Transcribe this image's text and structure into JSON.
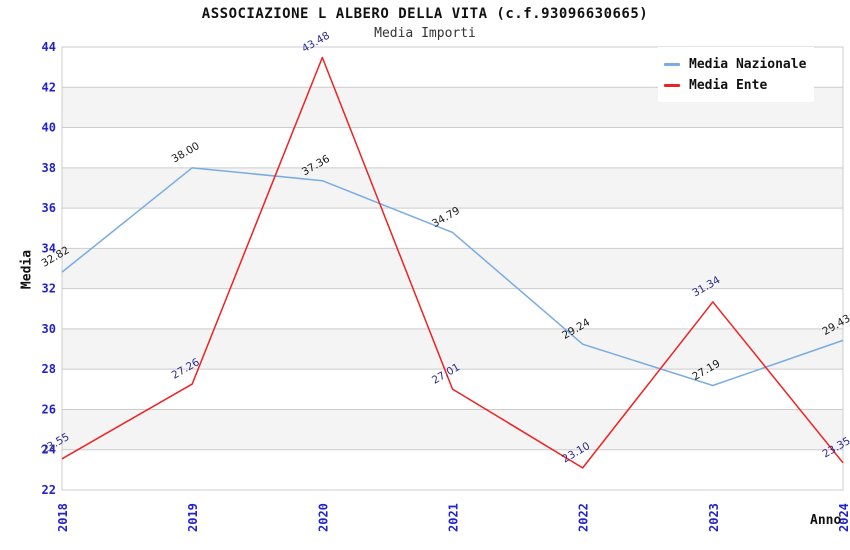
{
  "header": {
    "title": "ASSOCIAZIONE L ALBERO DELLA VITA (c.f.93096630665)",
    "subtitle": "Media Importi"
  },
  "legend": {
    "items": [
      {
        "label": "Media Nazionale",
        "color": "#79ACE1"
      },
      {
        "label": "Media Ente",
        "color": "#EE2222"
      }
    ]
  },
  "axes": {
    "y_label": "Media",
    "x_label": "Anno",
    "tick_label_color": "#2222CC"
  },
  "chart_data": {
    "type": "line",
    "title": "ASSOCIAZIONE L ALBERO DELLA VITA (c.f.93096630665)",
    "subtitle": "Media Importi",
    "xlabel": "Anno",
    "ylabel": "Media",
    "x": [
      2018,
      2019,
      2020,
      2021,
      2022,
      2023,
      2024
    ],
    "series": [
      {
        "name": "Media Nazionale",
        "color": "#79ACE1",
        "label_color": "#1A1A1A",
        "values": [
          32.82,
          38.0,
          37.36,
          34.79,
          29.24,
          27.19,
          29.43
        ]
      },
      {
        "name": "Media Ente",
        "color": "#EE2222",
        "label_color": "#2B2B8F",
        "values": [
          23.55,
          27.26,
          43.48,
          27.01,
          23.1,
          31.34,
          23.35
        ]
      }
    ],
    "ylim": [
      22,
      44
    ],
    "y_tick_step": 2,
    "grid": "horizontal",
    "gridline_color": "#CCCCCC",
    "band_fill": "#F4F4F4",
    "band_ranges": [
      [
        24,
        26
      ],
      [
        28,
        30
      ],
      [
        32,
        34
      ],
      [
        36,
        38
      ],
      [
        40,
        42
      ]
    ],
    "legend_position": "top-right",
    "point_labels": "two-decimals, rotated"
  }
}
